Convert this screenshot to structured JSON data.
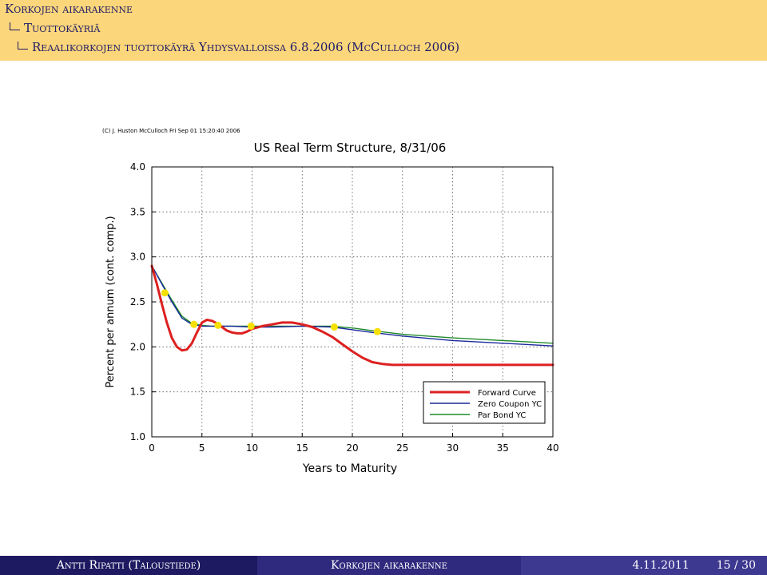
{
  "header": {
    "section": "Korkojen aikarakenne",
    "subsection": "Tuottokäyriä",
    "frame_title": "Reaalikorkojen tuottokäyrä Yhdysvalloissa 6.8.2006 (McCulloch 2006)"
  },
  "footer": {
    "author": "Antti Ripatti (Taloustiede)",
    "title": "Korkojen aikarakenne",
    "date": "4.11.2011",
    "page": "15 / 30"
  },
  "chart_data": {
    "type": "line",
    "copyright": "(C) J. Huston McCulloch Fri Sep 01 15:20:40 2006",
    "title": "US Real Term Structure, 8/31/06",
    "xlabel": "Years to Maturity",
    "ylabel": "Percent per annum (cont. comp.)",
    "xlim": [
      0,
      40
    ],
    "ylim": [
      1.0,
      4.0
    ],
    "x_ticks": [
      0,
      5,
      10,
      15,
      20,
      25,
      30,
      35,
      40
    ],
    "x_tick_labels": [
      "0",
      "5",
      "10",
      "15",
      "20",
      "25",
      "30",
      "35",
      "40"
    ],
    "y_ticks": [
      1.0,
      1.5,
      2.0,
      2.5,
      3.0,
      3.5,
      4.0
    ],
    "y_tick_labels": [
      "1.0",
      "1.5",
      "2.0",
      "2.5",
      "3.0",
      "3.5",
      "4.0"
    ],
    "grid": true,
    "legend_position": "bottom-right",
    "series": [
      {
        "name": "Forward Curve",
        "color": "#dd2020",
        "x": [
          0,
          0.5,
          1,
          1.5,
          2,
          2.5,
          3,
          3.5,
          4,
          4.5,
          5,
          5.5,
          6,
          6.5,
          7,
          7.5,
          8,
          8.5,
          9,
          9.5,
          10,
          11,
          12,
          13,
          14,
          15,
          16,
          17,
          18,
          19,
          20,
          21,
          22,
          23,
          24,
          25,
          30,
          35,
          40
        ],
        "y": [
          2.9,
          2.7,
          2.48,
          2.27,
          2.1,
          2.0,
          1.96,
          1.97,
          2.04,
          2.16,
          2.27,
          2.3,
          2.29,
          2.26,
          2.22,
          2.18,
          2.16,
          2.15,
          2.15,
          2.17,
          2.2,
          2.23,
          2.25,
          2.27,
          2.27,
          2.25,
          2.22,
          2.17,
          2.11,
          2.03,
          1.95,
          1.88,
          1.83,
          1.81,
          1.8,
          1.8,
          1.8,
          1.8,
          1.8
        ]
      },
      {
        "name": "Zero Coupon YC",
        "color": "#1a2a9a",
        "x": [
          0,
          1,
          2,
          3,
          4,
          5,
          6,
          7,
          8,
          10,
          12,
          15,
          18,
          20,
          22,
          25,
          30,
          35,
          40
        ],
        "y": [
          2.9,
          2.7,
          2.5,
          2.32,
          2.25,
          2.23,
          2.23,
          2.23,
          2.23,
          2.22,
          2.22,
          2.23,
          2.22,
          2.19,
          2.16,
          2.12,
          2.07,
          2.04,
          2.01
        ]
      },
      {
        "name": "Par Bond YC",
        "color": "#1f8a2a",
        "x": [
          0,
          1,
          2,
          3,
          4,
          5,
          6,
          7,
          8,
          10,
          12,
          15,
          18,
          20,
          22,
          25,
          30,
          35,
          40
        ],
        "y": [
          2.9,
          2.71,
          2.52,
          2.34,
          2.26,
          2.24,
          2.23,
          2.23,
          2.23,
          2.23,
          2.23,
          2.23,
          2.23,
          2.21,
          2.18,
          2.14,
          2.1,
          2.07,
          2.04
        ]
      }
    ],
    "observed_points": {
      "color": "#f5e000",
      "x": [
        1.3,
        4.2,
        6.6,
        9.9,
        18.2,
        22.5
      ],
      "y": [
        2.6,
        2.25,
        2.24,
        2.23,
        2.22,
        2.17
      ]
    }
  }
}
